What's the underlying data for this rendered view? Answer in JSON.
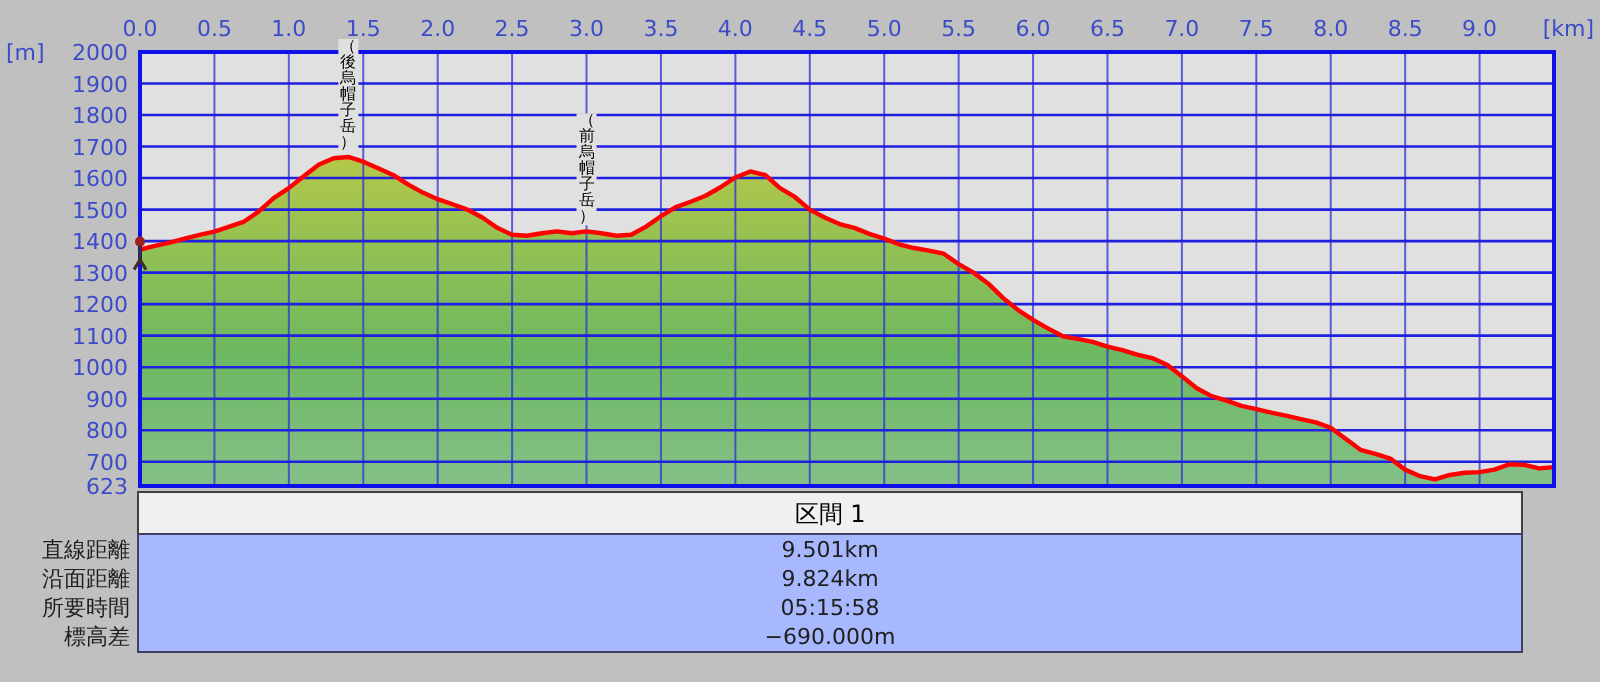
{
  "chart_data": {
    "type": "area",
    "xlabel": "[km]",
    "ylabel": "[m]",
    "xlim": [
      0,
      9.5
    ],
    "ylim": [
      623,
      2000
    ],
    "xticks": [
      {
        "value": 0,
        "label": "0.0"
      },
      {
        "value": 0.5,
        "label": "0.5"
      },
      {
        "value": 1,
        "label": "1.0"
      },
      {
        "value": 1.5,
        "label": "1.5"
      },
      {
        "value": 2,
        "label": "2.0"
      },
      {
        "value": 2.5,
        "label": "2.5"
      },
      {
        "value": 3,
        "label": "3.0"
      },
      {
        "value": 3.5,
        "label": "3.5"
      },
      {
        "value": 4,
        "label": "4.0"
      },
      {
        "value": 4.5,
        "label": "4.5"
      },
      {
        "value": 5,
        "label": "5.0"
      },
      {
        "value": 5.5,
        "label": "5.5"
      },
      {
        "value": 6,
        "label": "6.0"
      },
      {
        "value": 6.5,
        "label": "6.5"
      },
      {
        "value": 7,
        "label": "7.0"
      },
      {
        "value": 7.5,
        "label": "7.5"
      },
      {
        "value": 8,
        "label": "8.0"
      },
      {
        "value": 8.5,
        "label": "8.5"
      },
      {
        "value": 9,
        "label": "9.0"
      }
    ],
    "yticks": [
      623,
      700,
      800,
      900,
      1000,
      1100,
      1200,
      1300,
      1400,
      1500,
      1600,
      1700,
      1800,
      1900,
      2000
    ],
    "grid": true,
    "x": [
      0,
      0.1,
      0.2,
      0.3,
      0.4,
      0.5,
      0.6,
      0.7,
      0.8,
      0.9,
      1.0,
      1.1,
      1.2,
      1.3,
      1.4,
      1.5,
      1.6,
      1.7,
      1.8,
      1.9,
      2.0,
      2.1,
      2.2,
      2.3,
      2.4,
      2.5,
      2.6,
      2.7,
      2.8,
      2.9,
      3.0,
      3.1,
      3.2,
      3.3,
      3.4,
      3.5,
      3.6,
      3.7,
      3.8,
      3.9,
      4.0,
      4.1,
      4.2,
      4.3,
      4.4,
      4.5,
      4.6,
      4.7,
      4.8,
      4.9,
      5.0,
      5.1,
      5.2,
      5.3,
      5.4,
      5.5,
      5.6,
      5.7,
      5.8,
      5.9,
      6.0,
      6.1,
      6.2,
      6.3,
      6.4,
      6.5,
      6.6,
      6.7,
      6.8,
      6.9,
      7.0,
      7.1,
      7.2,
      7.3,
      7.4,
      7.5,
      7.6,
      7.7,
      7.8,
      7.9,
      8.0,
      8.1,
      8.2,
      8.3,
      8.4,
      8.5,
      8.6,
      8.7,
      8.8,
      8.9,
      9.0,
      9.1,
      9.2,
      9.3,
      9.4,
      9.5
    ],
    "series": [
      {
        "color": "#ff0000",
        "values": [
          1373,
          1385,
          1395,
          1408,
          1420,
          1430,
          1446,
          1462,
          1495,
          1537,
          1568,
          1606,
          1642,
          1663,
          1667,
          1652,
          1631,
          1610,
          1580,
          1554,
          1533,
          1517,
          1500,
          1475,
          1442,
          1420,
          1417,
          1425,
          1431,
          1425,
          1431,
          1425,
          1417,
          1420,
          1446,
          1479,
          1508,
          1525,
          1544,
          1571,
          1602,
          1621,
          1610,
          1568,
          1540,
          1500,
          1475,
          1454,
          1442,
          1423,
          1408,
          1390,
          1378,
          1370,
          1360,
          1327,
          1300,
          1265,
          1219,
          1181,
          1150,
          1123,
          1098,
          1090,
          1080,
          1065,
          1054,
          1040,
          1029,
          1008,
          971,
          933,
          908,
          894,
          877,
          867,
          856,
          846,
          835,
          825,
          808,
          773,
          738,
          725,
          710,
          675,
          654,
          644,
          658,
          665,
          667,
          675,
          692,
          690,
          679,
          683
        ]
      }
    ],
    "annotations": [
      {
        "text": "（後烏帽子岳）",
        "x": 1.4,
        "y": 1667
      },
      {
        "text": "（前烏帽子岳）",
        "x": 3.0,
        "y": 1431
      },
      "区間 1",
      "直線距離",
      "9.501km",
      "沿面距離",
      "9.824km",
      "所要時間",
      "05:15:58",
      "標高差",
      "−690.000m"
    ]
  }
}
